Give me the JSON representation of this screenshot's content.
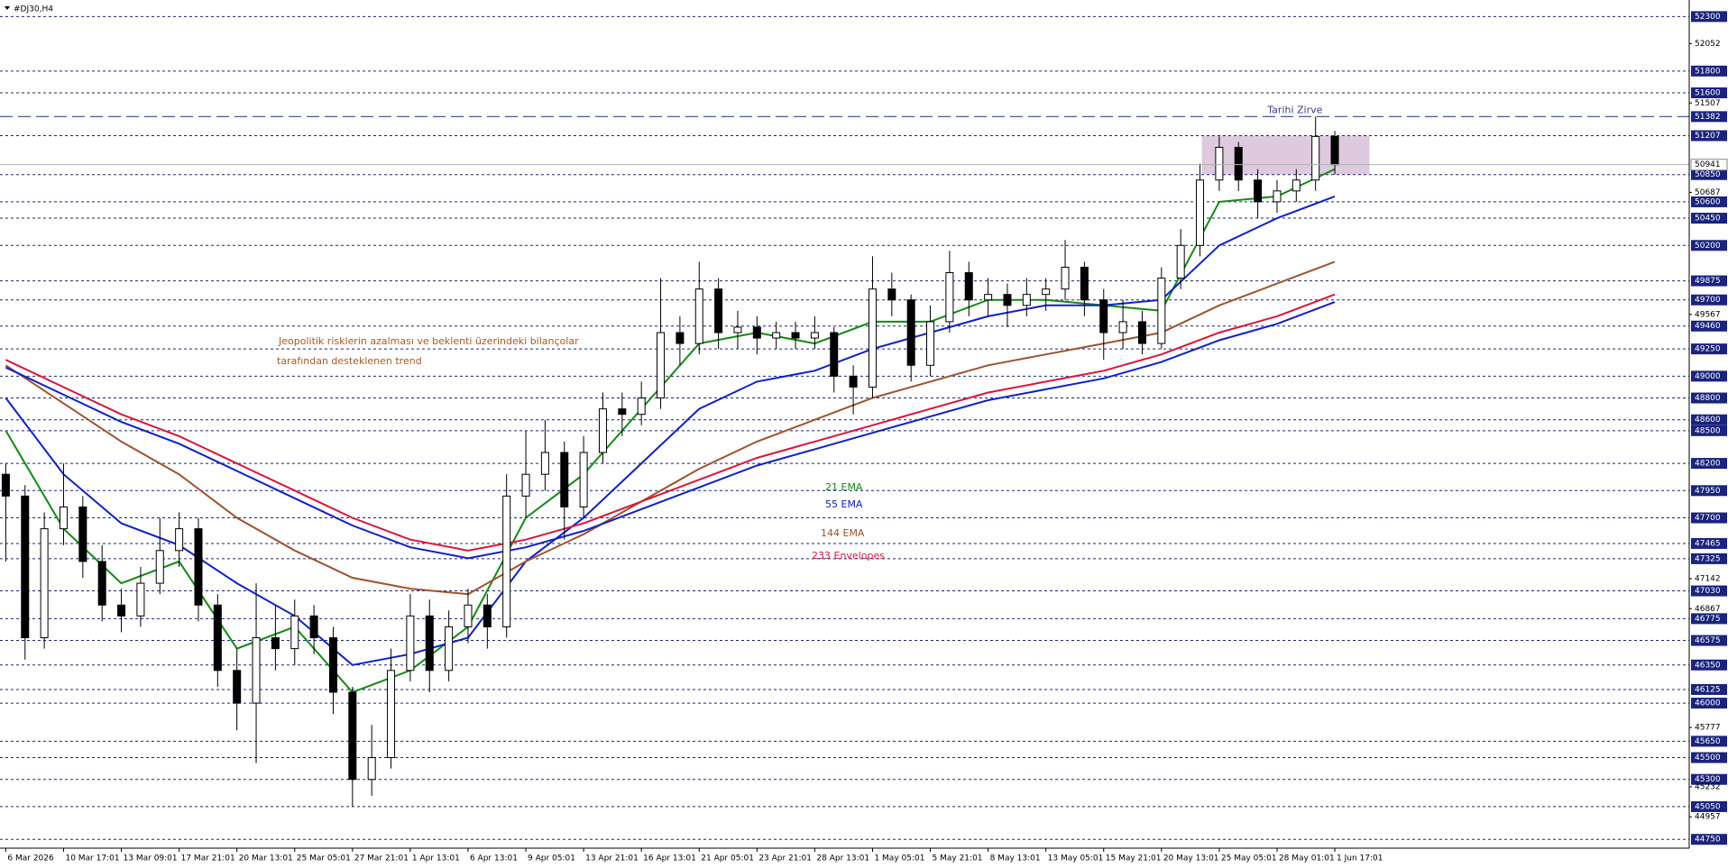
{
  "chart_data": {
    "type": "candlestick",
    "title": "#DJ30,H4",
    "xlim": [
      -0.3,
      87.4
    ],
    "ylim": [
      44669,
      52452
    ],
    "xticks": [
      {
        "value": 0,
        "label": "6 Mar 2026"
      },
      {
        "value": 3,
        "label": "10 Mar 17:01"
      },
      {
        "value": 6,
        "label": "13 Mar 09:01"
      },
      {
        "value": 9,
        "label": "17 Mar 21:01"
      },
      {
        "value": 12,
        "label": "20 Mar 13:01"
      },
      {
        "value": 15,
        "label": "25 Mar 05:01"
      },
      {
        "value": 18,
        "label": "27 Mar 21:01"
      },
      {
        "value": 21,
        "label": "1 Apr 13:01"
      },
      {
        "value": 24,
        "label": "6 Apr 13:01"
      },
      {
        "value": 27,
        "label": "9 Apr 05:01"
      },
      {
        "value": 30,
        "label": "13 Apr 21:01"
      },
      {
        "value": 33,
        "label": "16 Apr 13:01"
      },
      {
        "value": 36,
        "label": "21 Apr 05:01"
      },
      {
        "value": 39,
        "label": "23 Apr 21:01"
      },
      {
        "value": 42,
        "label": "28 Apr 13:01"
      },
      {
        "value": 45,
        "label": "1 May 05:01"
      },
      {
        "value": 48,
        "label": "5 May 21:01"
      },
      {
        "value": 51,
        "label": "8 May 13:01"
      },
      {
        "value": 54,
        "label": "13 May 05:01"
      },
      {
        "value": 57,
        "label": "15 May 21:01"
      },
      {
        "value": 60,
        "label": "20 May 13:01"
      },
      {
        "value": 63,
        "label": "25 May 05:01"
      },
      {
        "value": 66,
        "label": "28 May 01:01"
      },
      {
        "value": 69,
        "label": "1 Jun 17:01"
      }
    ],
    "yticks": [
      52052,
      51507,
      50687,
      49567,
      47142,
      46867,
      45777,
      45232,
      44957
    ],
    "levels": [
      52300,
      51800,
      51600,
      51207,
      50850,
      50600,
      50450,
      50200,
      49875,
      49700,
      49460,
      49250,
      49000,
      48800,
      48600,
      48500,
      48200,
      47950,
      47700,
      47465,
      47325,
      47030,
      46775,
      46575,
      46350,
      46125,
      46000,
      45650,
      45500,
      45300,
      45050,
      44750
    ],
    "last_price": 50941,
    "resistance": {
      "label": "Tarihi Zirve",
      "value": 51382
    },
    "zone": {
      "x": [
        62.1,
        70.8
      ],
      "y": [
        50850,
        51207
      ],
      "color": "#d8bfd8"
    },
    "annotations": [
      {
        "text": "Jeopolitik risklerin azalması ve beklenti üzerindeki bilançolar",
        "color": "#b0581e"
      },
      {
        "text": "tarafından desteklenen trend",
        "color": "#b0581e"
      }
    ],
    "open": [
      48100,
      47900,
      46600,
      47600,
      47800,
      47300,
      46900,
      46800,
      47100,
      47400,
      47600,
      46900,
      46300,
      46000,
      46600,
      46500,
      46800,
      46600,
      46100,
      45300,
      45500,
      46300,
      46800,
      46300,
      46700,
      46900,
      46700,
      47900,
      48100,
      48300,
      47800,
      48300,
      48700,
      48650,
      48800,
      49400,
      49300,
      49800,
      49400,
      49450,
      49350,
      49400,
      49350,
      49400,
      49000,
      48900,
      49800,
      49700,
      49100,
      49500,
      49950,
      49700,
      49750,
      49650,
      49750,
      49800,
      50000,
      49700,
      49400,
      49500,
      49300,
      49900,
      50200,
      50800,
      51100,
      50800,
      50600,
      50700,
      50800,
      51200
    ],
    "high": [
      48200,
      48000,
      47750,
      48200,
      47900,
      47450,
      47050,
      47250,
      47700,
      47750,
      47700,
      47000,
      46500,
      47100,
      46900,
      46950,
      46900,
      46700,
      46150,
      45800,
      46500,
      47000,
      46950,
      46850,
      47050,
      47000,
      48100,
      48500,
      48600,
      48400,
      48450,
      48850,
      48850,
      48950,
      49900,
      49550,
      50050,
      49900,
      49600,
      49550,
      49500,
      49500,
      49550,
      49450,
      49100,
      50100,
      49950,
      49750,
      49650,
      50150,
      50050,
      49900,
      49850,
      49900,
      49900,
      50250,
      50050,
      49800,
      49700,
      49600,
      50000,
      50350,
      50950,
      51200,
      51150,
      50900,
      50800,
      50900,
      51382,
      51250
    ],
    "low": [
      47300,
      46400,
      46500,
      47450,
      47150,
      46750,
      46650,
      46700,
      47000,
      47250,
      46750,
      46150,
      45750,
      45450,
      46300,
      46350,
      46450,
      45900,
      45050,
      45150,
      45400,
      46200,
      46100,
      46200,
      46550,
      46500,
      46600,
      47700,
      47950,
      47500,
      47700,
      48200,
      48450,
      48550,
      48700,
      49100,
      49200,
      49250,
      49250,
      49200,
      49250,
      49250,
      49250,
      48850,
      48650,
      48800,
      49550,
      48950,
      49000,
      49400,
      49550,
      49550,
      49450,
      49550,
      49600,
      49700,
      49550,
      49150,
      49250,
      49200,
      49250,
      49800,
      50100,
      50700,
      50700,
      50450,
      50500,
      50600,
      50700,
      50850
    ],
    "close": [
      47900,
      46600,
      47600,
      47800,
      47300,
      46900,
      46800,
      47100,
      47400,
      47600,
      46900,
      46300,
      46000,
      46600,
      46500,
      46800,
      46600,
      46100,
      45300,
      45500,
      46300,
      46800,
      46300,
      46700,
      46900,
      46700,
      47900,
      48100,
      48300,
      47800,
      48300,
      48700,
      48650,
      48800,
      49400,
      49300,
      49800,
      49400,
      49450,
      49350,
      49400,
      49350,
      49400,
      49000,
      48900,
      49800,
      49700,
      49100,
      49500,
      49950,
      49700,
      49750,
      49650,
      49750,
      49800,
      50000,
      49700,
      49400,
      49500,
      49300,
      49900,
      50200,
      50800,
      51100,
      50800,
      50600,
      50700,
      50800,
      51200,
      50941
    ],
    "ema_x": [
      0,
      3,
      6,
      9,
      12,
      15,
      18,
      21,
      24,
      27,
      30,
      33,
      36,
      39,
      42,
      45,
      48,
      51,
      54,
      57,
      60,
      63,
      66,
      69
    ],
    "series": [
      {
        "name": "21 EMA",
        "color": "#138a13",
        "values": [
          48500,
          47600,
          47100,
          47300,
          46500,
          46700,
          46100,
          46300,
          46700,
          47700,
          48100,
          48700,
          49300,
          49400,
          49300,
          49500,
          49500,
          49700,
          49700,
          49650,
          49600,
          50600,
          50650,
          50900
        ]
      },
      {
        "name": "55 EMA",
        "color": "#1020c8",
        "values": [
          48800,
          48100,
          47650,
          47450,
          47100,
          46800,
          46350,
          46450,
          46600,
          47300,
          47700,
          48200,
          48700,
          48950,
          49050,
          49250,
          49400,
          49550,
          49650,
          49650,
          49700,
          50200,
          50450,
          50650
        ]
      },
      {
        "name": "144 EMA",
        "color": "#a0522d",
        "values": [
          49100,
          48750,
          48400,
          48100,
          47700,
          47400,
          47150,
          47050,
          47000,
          47300,
          47550,
          47850,
          48150,
          48400,
          48600,
          48800,
          48950,
          49100,
          49200,
          49300,
          49400,
          49650,
          49850,
          50050
        ]
      },
      {
        "name": "233 Envelopes",
        "color": "#dc143c",
        "lower_color": "#1020c8",
        "values": [
          49150,
          48900,
          48650,
          48450,
          48200,
          47950,
          47700,
          47500,
          47400,
          47500,
          47650,
          47850,
          48050,
          48250,
          48400,
          48550,
          48700,
          48850,
          48950,
          49050,
          49200,
          49400,
          49550,
          49750
        ],
        "lower": [
          49080,
          48830,
          48580,
          48380,
          48130,
          47880,
          47630,
          47430,
          47330,
          47430,
          47580,
          47780,
          47980,
          48180,
          48330,
          48480,
          48630,
          48780,
          48880,
          48980,
          49130,
          49330,
          49480,
          49680
        ]
      }
    ]
  }
}
